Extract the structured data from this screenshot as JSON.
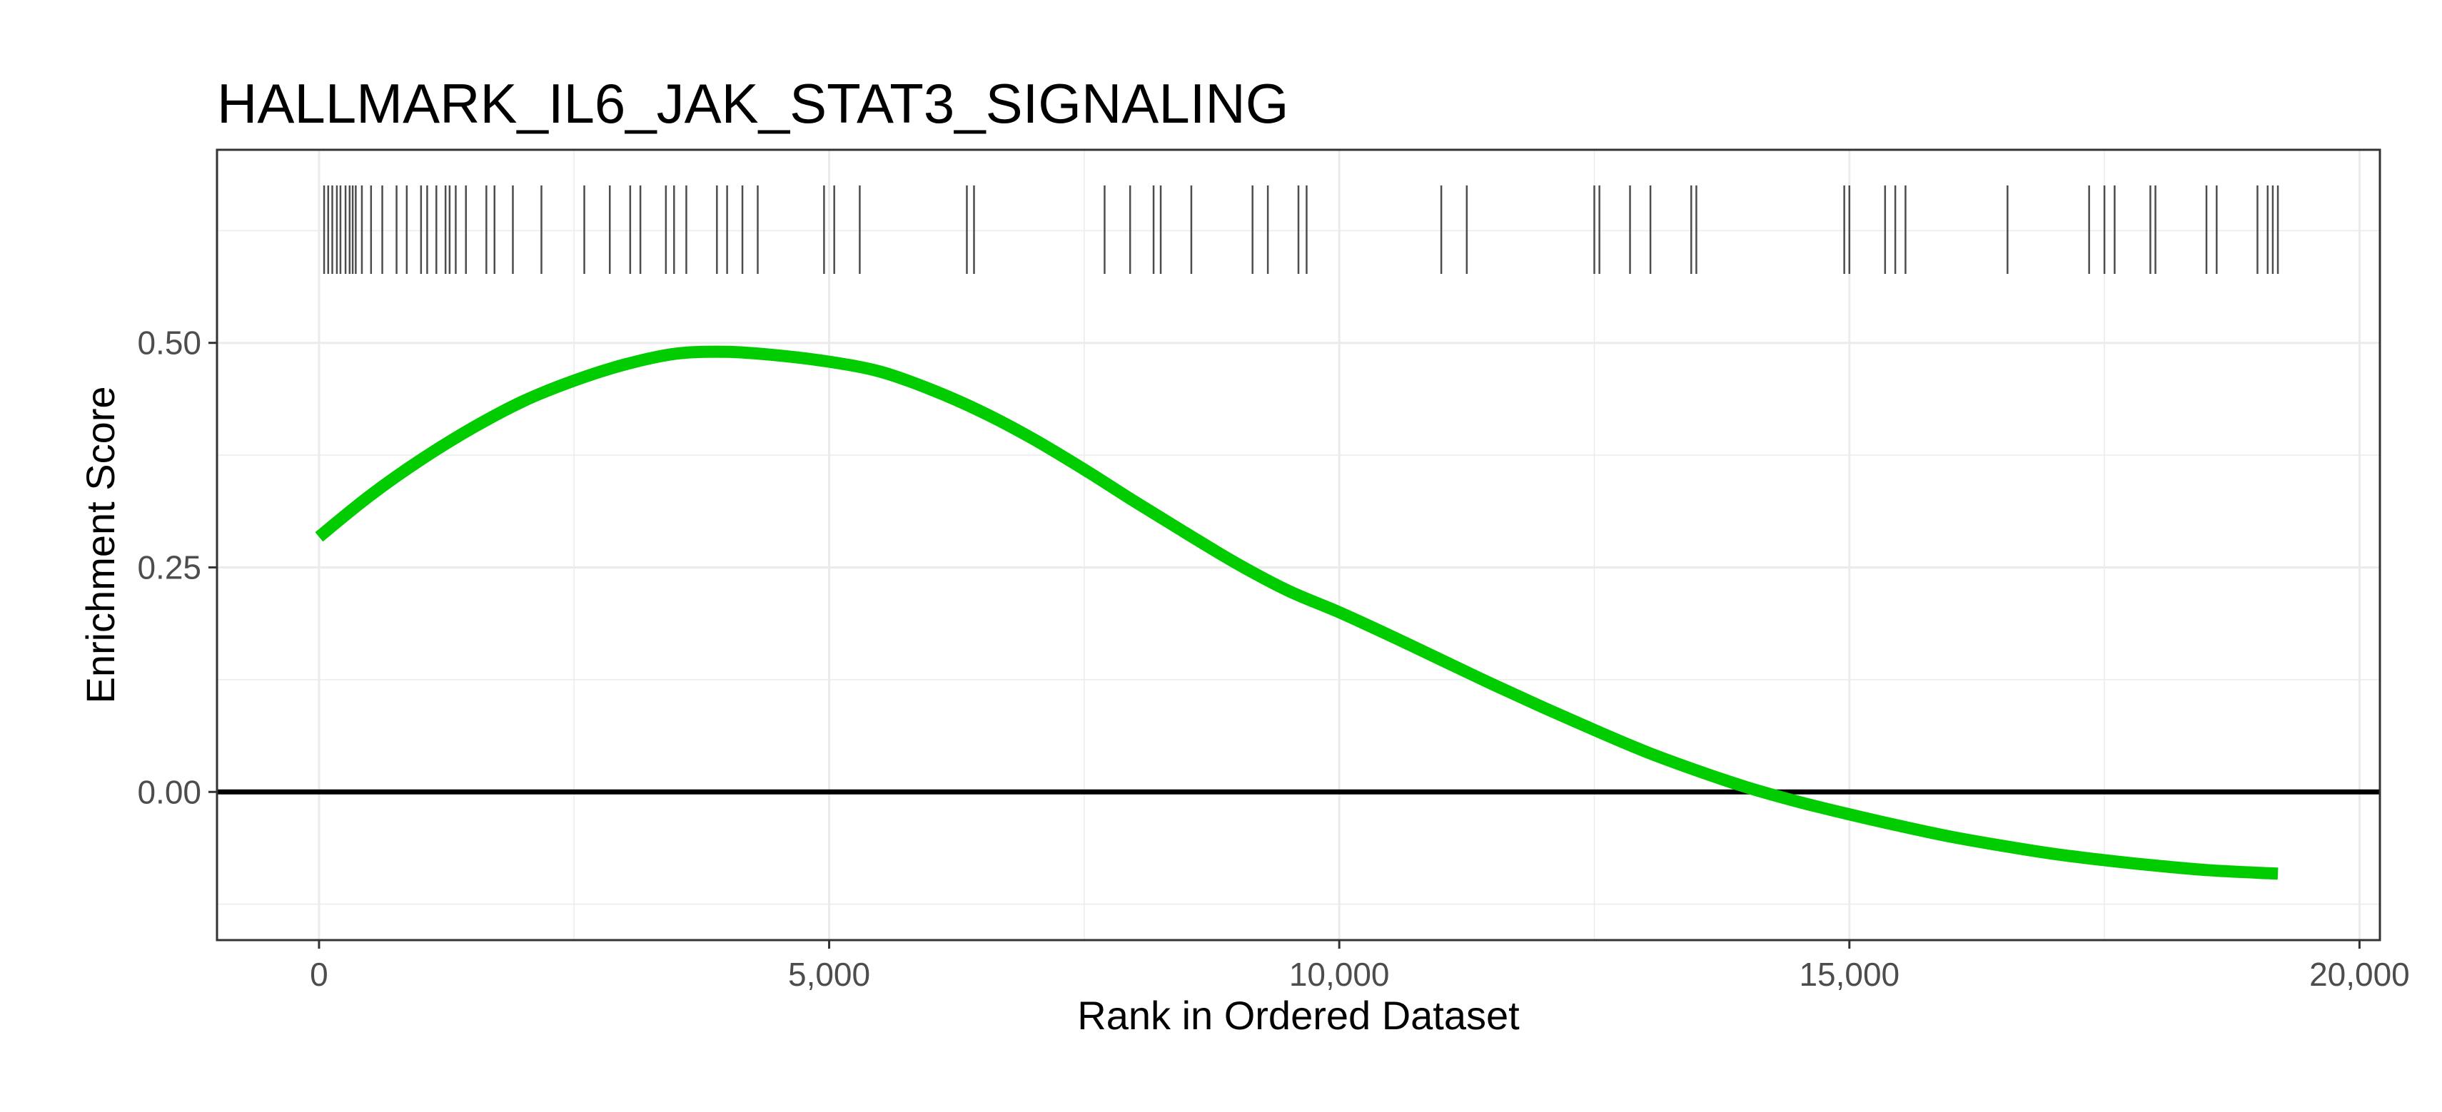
{
  "chart_data": {
    "type": "line",
    "title": "HALLMARK_IL6_JAK_STAT3_SIGNALING",
    "xlabel": "Rank in Ordered Dataset",
    "ylabel": "Enrichment Score",
    "xlim": [
      -1000,
      20200
    ],
    "ylim": [
      -0.165,
      0.715
    ],
    "xticks": [
      0,
      5000,
      10000,
      15000,
      20000
    ],
    "xtick_labels": [
      "0",
      "5,000",
      "10,000",
      "15,000",
      "20,000"
    ],
    "yticks": [
      0.0,
      0.25,
      0.5
    ],
    "ytick_labels": [
      "0.00",
      "0.25",
      "0.50"
    ],
    "grid": true,
    "zero_line": 0.0,
    "series": [
      {
        "color": "#00cc00",
        "x": [
          0,
          500,
          1000,
          1500,
          2000,
          2500,
          3000,
          3500,
          4000,
          4500,
          5000,
          5500,
          6000,
          6500,
          7000,
          7500,
          8000,
          8500,
          9000,
          9500,
          10000,
          10500,
          11000,
          11500,
          12000,
          12500,
          13000,
          13500,
          14000,
          14500,
          15000,
          15500,
          16000,
          16500,
          17000,
          17500,
          18000,
          18500,
          19000,
          19200
        ],
        "y": [
          0.284,
          0.33,
          0.37,
          0.405,
          0.435,
          0.458,
          0.476,
          0.488,
          0.49,
          0.486,
          0.479,
          0.468,
          0.448,
          0.423,
          0.393,
          0.359,
          0.323,
          0.288,
          0.254,
          0.224,
          0.2,
          0.174,
          0.147,
          0.12,
          0.094,
          0.069,
          0.045,
          0.024,
          0.005,
          -0.011,
          -0.025,
          -0.038,
          -0.05,
          -0.06,
          -0.069,
          -0.076,
          -0.082,
          -0.087,
          -0.09,
          -0.091
        ]
      }
    ],
    "gene_hits": [
      50,
      90,
      130,
      175,
      210,
      260,
      300,
      330,
      360,
      420,
      510,
      620,
      760,
      860,
      1000,
      1060,
      1150,
      1240,
      1280,
      1340,
      1440,
      1640,
      1720,
      1900,
      2180,
      2600,
      2850,
      3050,
      3150,
      3400,
      3480,
      3600,
      3900,
      4000,
      4150,
      4300,
      4950,
      5050,
      5300,
      6350,
      6420,
      7700,
      7950,
      8180,
      8250,
      8550,
      9150,
      9300,
      9600,
      9680,
      11000,
      11250,
      12500,
      12550,
      12850,
      13050,
      13450,
      13500,
      14950,
      15000,
      15350,
      15450,
      15550,
      16550,
      17350,
      17500,
      17600,
      17950,
      18000,
      18500,
      18600,
      19000,
      19100,
      19150,
      19200
    ]
  }
}
